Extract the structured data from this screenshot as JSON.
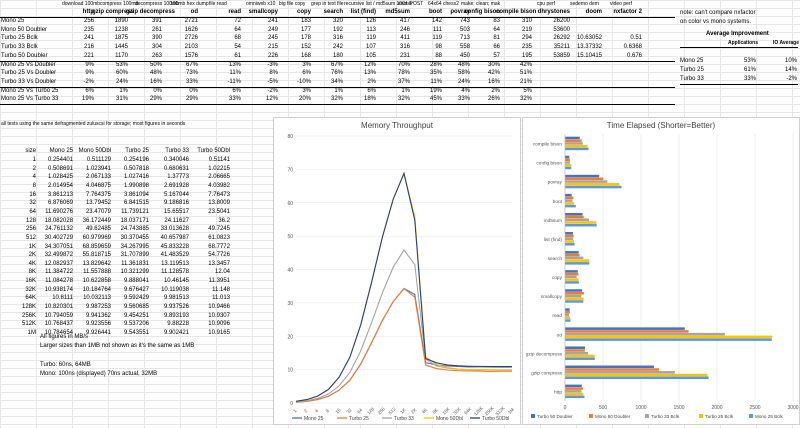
{
  "top_table": {
    "header_line1": [
      "download 100mb",
      "compress 100mb",
      "decompress 100mb",
      "100mb hex dump",
      "file read",
      "omniweb x10",
      "big file copy",
      "grep in text file",
      "recursive list / md5sum 100mb",
      "excl. POST",
      "64x64 chess2",
      "make; clean; mak",
      "cpu perf",
      "sedemo dem",
      "video perf"
    ],
    "headers": [
      "http",
      "gzip compress",
      "gzip decompress",
      "od",
      "read",
      "smallcopy",
      "copy",
      "search",
      "list (find)",
      "md5sum",
      "boot",
      "povray",
      "config bison",
      "compile bison",
      "dhrystones",
      "doom",
      "nxfactor 2"
    ],
    "rows": [
      {
        "label": "Mono 25",
        "cells": [
          "256",
          "1890",
          "391",
          "2721",
          "72",
          "241",
          "183",
          "320",
          "126",
          "417",
          "142",
          "743",
          "83",
          "310",
          "26200",
          "",
          ""
        ]
      },
      {
        "label": "Mono 50 Doubler",
        "cells": [
          "235",
          "1238",
          "261",
          "1626",
          "64",
          "249",
          "177",
          "192",
          "113",
          "246",
          "111",
          "503",
          "64",
          "219",
          "53600",
          "",
          ""
        ]
      },
      {
        "label": "Turbo 25 Bclk",
        "cells": [
          "241",
          "1875",
          "390",
          "2726",
          "68",
          "245",
          "178",
          "316",
          "119",
          "411",
          "119",
          "713",
          "81",
          "294",
          "26292",
          "10.63052",
          "0.51"
        ]
      },
      {
        "label": "Turbo 33 Bclk",
        "cells": [
          "216",
          "1445",
          "304",
          "2103",
          "54",
          "215",
          "152",
          "242",
          "107",
          "316",
          "98",
          "558",
          "66",
          "235",
          "35211",
          "13.37332",
          "0.6368"
        ]
      },
      {
        "label": "Turbo 50 Doubler",
        "cells": [
          "221",
          "1170",
          "263",
          "1576",
          "61",
          "226",
          "168",
          "180",
          "105",
          "231",
          "88",
          "450",
          "57",
          "195",
          "53859",
          "15.10415",
          "0.676"
        ]
      },
      {
        "label": "Mono 25 Vs Doubler",
        "cells": [
          "9%",
          "53%",
          "50%",
          "67%",
          "13%",
          "-3%",
          "3%",
          "67%",
          "12%",
          "70%",
          "28%",
          "48%",
          "30%",
          "42%",
          "",
          "",
          ""
        ]
      },
      {
        "label": "Turbo 25 Vs Doubler",
        "cells": [
          "9%",
          "60%",
          "48%",
          "73%",
          "11%",
          "8%",
          "6%",
          "76%",
          "13%",
          "78%",
          "35%",
          "58%",
          "42%",
          "51%",
          "",
          "",
          ""
        ]
      },
      {
        "label": "Turbo 33 Vs Doubler",
        "cells": [
          "-2%",
          "24%",
          "16%",
          "33%",
          "-11%",
          "-5%",
          "-10%",
          "34%",
          "2%",
          "37%",
          "11%",
          "24%",
          "16%",
          "21%",
          "",
          "",
          ""
        ]
      },
      {
        "label": "Mono 25 Vs Turbo 25",
        "cells": [
          "6%",
          "1%",
          "0%",
          "0%",
          "6%",
          "-2%",
          "3%",
          "1%",
          "6%",
          "1%",
          "19%",
          "4%",
          "2%",
          "5%",
          "",
          "",
          ""
        ]
      },
      {
        "label": "Mono 25 Vs Turbo 33",
        "cells": [
          "19%",
          "31%",
          "29%",
          "29%",
          "33%",
          "12%",
          "20%",
          "32%",
          "18%",
          "32%",
          "45%",
          "33%",
          "26%",
          "32%",
          "",
          "",
          ""
        ]
      }
    ]
  },
  "notes": {
    "nxfactor": "note: can't compare nxfactor",
    "nxfactor2": "on color vs mono systems.",
    "storage": "all tests using the same defragmented zuluscsi for storage; most figures in seconds",
    "mbps": "All figures in MB/s",
    "larger": "Larger sizes than 1MB not shown as it's the same as 1MB",
    "turbo": "Turbo: 60ns, 64MB",
    "mono": "Mono: 100ns (displayed) 70ns actual, 32MB"
  },
  "avg_table": {
    "title": "Average Improvement",
    "headers": [
      "Applications",
      "IO Average"
    ],
    "rows": [
      {
        "label": "Mono 25",
        "apps": "53%",
        "io": "10%"
      },
      {
        "label": "Turbo 25",
        "apps": "61%",
        "io": "14%"
      },
      {
        "label": "Turbo 33",
        "apps": "33%",
        "io": "-2%"
      }
    ]
  },
  "mem_table": {
    "headers": [
      "size",
      "Mono 25",
      "Mono 50Dbl",
      "Turbo 25",
      "Turbo 33",
      "Turbo 50Dbl"
    ],
    "rows": [
      [
        "1",
        "0.254401",
        "0.511129",
        "0.254196",
        "0.340046",
        "0.51141"
      ],
      [
        "2",
        "0.508691",
        "1.023941",
        "0.507818",
        "0.680631",
        "1.02215"
      ],
      [
        "4",
        "1.028425",
        "2.067133",
        "1.027416",
        "1.37773",
        "2.06665"
      ],
      [
        "8",
        "2.014954",
        "4.046875",
        "1.990898",
        "2.691928",
        "4.03982"
      ],
      [
        "16",
        "3.861213",
        "7.764375",
        "3.861094",
        "5.167044",
        "7.76473"
      ],
      [
        "32",
        "6.876069",
        "13.79452",
        "6.841515",
        "9.186816",
        "13.8009"
      ],
      [
        "64",
        "11.690276",
        "23.47079",
        "11.739121",
        "15.65517",
        "23.5041"
      ],
      [
        "128",
        "18.082028",
        "36.172449",
        "18.037171",
        "24.11627",
        "36.2"
      ],
      [
        "256",
        "24.761132",
        "49.62485",
        "24.743885",
        "33.013628",
        "49.7245"
      ],
      [
        "512",
        "30.402729",
        "60.979969",
        "30.370455",
        "40.657987",
        "61.0823"
      ],
      [
        "1K",
        "34.307051",
        "68.859659",
        "34.267995",
        "45.833228",
        "68.7772"
      ],
      [
        "2K",
        "32.499872",
        "55.818715",
        "31.707899",
        "41.483529",
        "54.7726"
      ],
      [
        "4K",
        "12.082937",
        "13.829642",
        "11.361831",
        "13.119513",
        "13.3457"
      ],
      [
        "8K",
        "11.384722",
        "11.557888",
        "10.321299",
        "11.128578",
        "12.04"
      ],
      [
        "16K",
        "11.084278",
        "10.622858",
        "9.888041",
        "10.46145",
        "11.3951"
      ],
      [
        "32K",
        "10.938174",
        "10.184764",
        "9.676427",
        "10.119038",
        "11.148"
      ],
      [
        "64K",
        "10.8111",
        "10.032113",
        "9.592429",
        "9.981513",
        "11.013"
      ],
      [
        "128K",
        "10.820301",
        "9.987253",
        "9.560685",
        "9.937526",
        "10.9466"
      ],
      [
        "256K",
        "10.794059",
        "9.941362",
        "9.454251",
        "9.893193",
        "10.9307"
      ],
      [
        "512K",
        "10.768437",
        "9.923556",
        "9.537206",
        "9.88228",
        "10.9096"
      ],
      [
        "1M",
        "10.784654",
        "9.926441",
        "9.543551",
        "9.902421",
        "10.9165"
      ]
    ]
  },
  "chart_data": [
    {
      "type": "line",
      "title": "Memory Throughput",
      "ylim": [
        0,
        80
      ],
      "yticks": [
        0,
        10,
        20,
        30,
        40,
        50,
        60,
        70,
        80
      ],
      "categories": [
        "1",
        "2",
        "4",
        "8",
        "16",
        "32",
        "64",
        "128",
        "256",
        "512",
        "1K",
        "2K",
        "4K",
        "8K",
        "16K",
        "32K",
        "64K",
        "128K",
        "256K",
        "512K",
        "1M"
      ],
      "series": [
        {
          "name": "Mono 25",
          "color": "#4472C4",
          "values": [
            0.254401,
            0.508691,
            1.028425,
            2.014954,
            3.861213,
            6.876069,
            11.690276,
            18.082028,
            24.761132,
            30.402729,
            34.307051,
            32.499872,
            12.082937,
            11.384722,
            11.084278,
            10.938174,
            10.8111,
            10.820301,
            10.794059,
            10.768437,
            10.784654
          ]
        },
        {
          "name": "Turbo 25",
          "color": "#ED7D31",
          "values": [
            0.254196,
            0.507818,
            1.027416,
            1.990898,
            3.861094,
            6.841515,
            11.739121,
            18.037171,
            24.743885,
            30.370455,
            34.267995,
            31.707899,
            11.361831,
            10.321299,
            9.888041,
            9.676427,
            9.592429,
            9.560685,
            9.454251,
            9.537206,
            9.543551
          ]
        },
        {
          "name": "Turbo 33",
          "color": "#A5A5A5",
          "values": [
            0.340046,
            0.680631,
            1.37773,
            2.691928,
            5.167044,
            9.186816,
            15.65517,
            24.11627,
            33.013628,
            40.657987,
            45.833228,
            41.483529,
            13.119513,
            11.128578,
            10.46145,
            10.119038,
            9.981513,
            9.937526,
            9.893193,
            9.88228,
            9.902421
          ]
        },
        {
          "name": "Mono 50Dbl",
          "color": "#FFC000",
          "values": [
            0.511129,
            1.023941,
            2.067133,
            4.046875,
            7.764375,
            13.79452,
            23.47079,
            36.172449,
            49.62485,
            60.979969,
            68.859659,
            55.818715,
            13.829642,
            11.557888,
            10.622858,
            10.184764,
            10.032113,
            9.987253,
            9.941362,
            9.923556,
            9.926441
          ]
        },
        {
          "name": "Turbo 50Dbl",
          "color": "#264478",
          "values": [
            0.51141,
            1.02215,
            2.06665,
            4.03982,
            7.76473,
            13.8009,
            23.5041,
            36.2,
            49.7245,
            61.0823,
            68.7772,
            54.7726,
            13.3457,
            12.04,
            11.3951,
            11.148,
            11.013,
            10.9466,
            10.9307,
            10.9096,
            10.9165
          ]
        }
      ]
    },
    {
      "type": "bar",
      "orientation": "horizontal",
      "title": "Time Elapsed (Shorter=Better)",
      "xlim": [
        0,
        3000
      ],
      "xticks": [
        0,
        500,
        1000,
        1500,
        2000,
        2500,
        3000
      ],
      "categories": [
        "compile bison",
        "config bison",
        "povray",
        "boot",
        "md5sum",
        "list (find)",
        "search",
        "copy",
        "smallcopy",
        "read",
        "od",
        "gzip decompress",
        "gzip compress",
        "http"
      ],
      "series": [
        {
          "name": "Turbo 50 Doubler",
          "color": "#4472C4",
          "values": [
            195,
            57,
            450,
            88,
            231,
            105,
            180,
            168,
            226,
            61,
            1576,
            263,
            1170,
            221
          ]
        },
        {
          "name": "Mono 50 Doubler",
          "color": "#ED7D31",
          "values": [
            219,
            64,
            503,
            111,
            246,
            113,
            192,
            177,
            249,
            64,
            1626,
            261,
            1238,
            235
          ]
        },
        {
          "name": "Turbo 33 Bclk",
          "color": "#A5A5A5",
          "values": [
            235,
            66,
            558,
            98,
            316,
            107,
            242,
            152,
            215,
            54,
            2103,
            304,
            1445,
            216
          ]
        },
        {
          "name": "Turbo 25 Bclk",
          "color": "#FFC000",
          "values": [
            294,
            81,
            713,
            119,
            411,
            119,
            316,
            178,
            245,
            68,
            2726,
            390,
            1875,
            241
          ]
        },
        {
          "name": "Mono 25 Bclk",
          "color": "#5B9BD5",
          "values": [
            310,
            83,
            743,
            142,
            417,
            126,
            320,
            183,
            241,
            72,
            2721,
            391,
            1890,
            256
          ]
        }
      ]
    }
  ]
}
